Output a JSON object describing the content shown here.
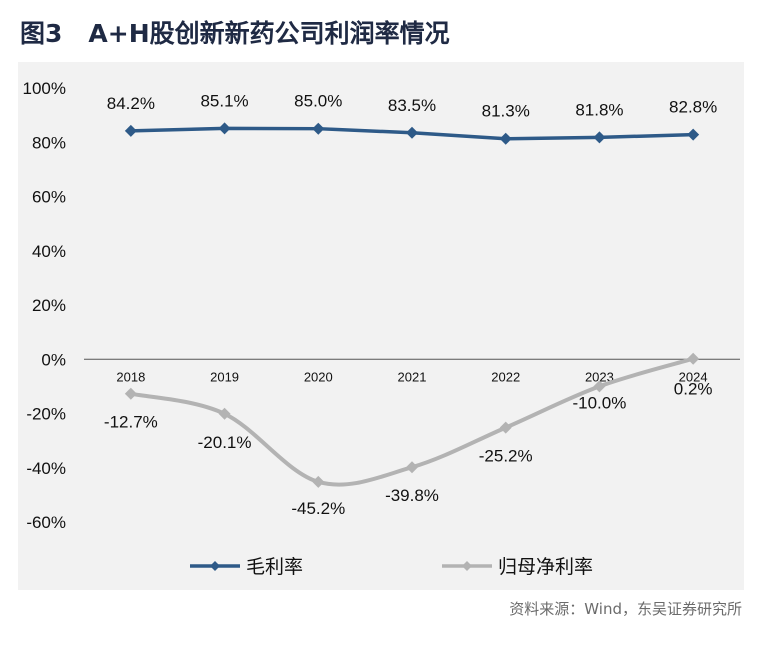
{
  "figure": {
    "number": "图3",
    "title": "A+H股创新新药公司利润率情况",
    "source": "资料来源：Wind，东吴证券研究所"
  },
  "colors": {
    "background_panel": "#f2f2f2",
    "gross_margin": "#2e5a88",
    "net_margin": "#b3b3b3",
    "axis": "#555555"
  },
  "chart_data": {
    "type": "line",
    "x": [
      "2018",
      "2019",
      "2020",
      "2021",
      "2022",
      "2023",
      "2024"
    ],
    "series": [
      {
        "name": "毛利率",
        "values": [
          84.2,
          85.1,
          85.0,
          83.5,
          81.3,
          81.8,
          82.8
        ],
        "labels": [
          "84.2%",
          "85.1%",
          "85.0%",
          "83.5%",
          "81.3%",
          "81.8%",
          "82.8%"
        ],
        "color": "#2e5a88",
        "smooth": false
      },
      {
        "name": "归母净利率",
        "values": [
          -12.7,
          -20.1,
          -45.2,
          -39.8,
          -25.2,
          -10.0,
          0.2
        ],
        "labels": [
          "-12.7%",
          "-20.1%",
          "-45.2%",
          "-39.8%",
          "-25.2%",
          "-10.0%",
          "0.2%"
        ],
        "color": "#b3b3b3",
        "smooth": true
      }
    ],
    "ylim": [
      -60,
      100
    ],
    "yticks": [
      100,
      80,
      60,
      40,
      20,
      0,
      -20,
      -40,
      -60
    ],
    "ytick_labels": [
      "100%",
      "80%",
      "60%",
      "40%",
      "20%",
      "0%",
      "-20%",
      "-40%",
      "-60%"
    ],
    "xlabel": "",
    "ylabel": "",
    "grid": false,
    "legend_position": "bottom"
  }
}
